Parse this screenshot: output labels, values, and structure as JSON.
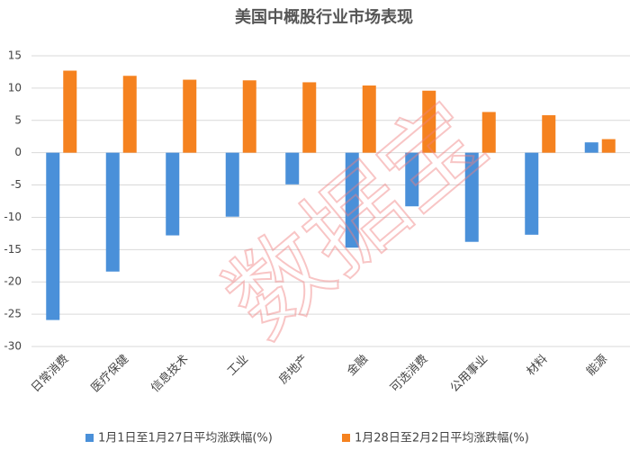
{
  "chart_data": {
    "type": "bar",
    "title": "美国中概股行业市场表现",
    "watermark": "数据宝",
    "categories": [
      "日常消费",
      "医疗保健",
      "信息技术",
      "工业",
      "房地产",
      "金融",
      "可选消费",
      "公用事业",
      "材料",
      "能源"
    ],
    "series": [
      {
        "name": "1月1日至1月27日平均涨跌幅(%)",
        "color": "#4a90d9",
        "values": [
          -25.9,
          -18.4,
          -12.8,
          -9.9,
          -4.9,
          -14.7,
          -8.3,
          -13.8,
          -12.7,
          1.6
        ]
      },
      {
        "name": "1月28日至2月2日平均涨跌幅(%)",
        "color": "#f5821f",
        "values": [
          12.7,
          11.9,
          11.3,
          11.2,
          10.9,
          10.4,
          9.6,
          6.3,
          5.8,
          2.1
        ]
      }
    ],
    "ylim": [
      -30,
      15
    ],
    "yticks": [
      -30,
      -25,
      -20,
      -15,
      -10,
      -5,
      0,
      5,
      10,
      15
    ],
    "grid": true,
    "legend": "bottom"
  }
}
